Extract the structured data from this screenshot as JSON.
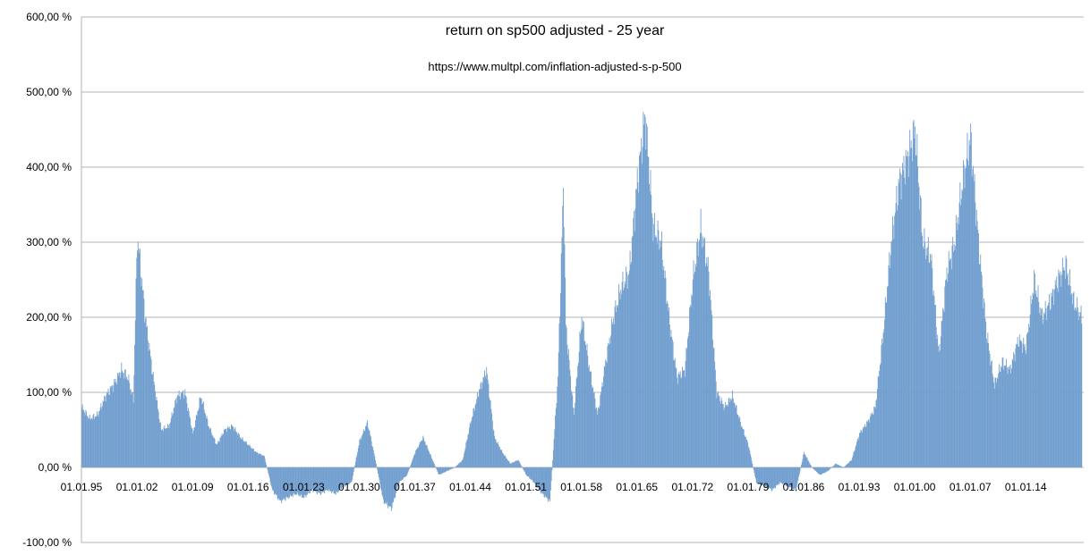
{
  "chart_data": {
    "type": "bar",
    "title": "return on sp500 adjusted - 25 year",
    "subtitle": "https://www.multpl.com/inflation-adjusted-s-p-500",
    "xlabel": "",
    "ylabel": "",
    "ylim": [
      -100,
      600
    ],
    "y_ticks": [
      {
        "value": 600,
        "label": "600,00 %"
      },
      {
        "value": 500,
        "label": "500,00 %"
      },
      {
        "value": 400,
        "label": "400,00 %"
      },
      {
        "value": 300,
        "label": "300,00 %"
      },
      {
        "value": 200,
        "label": "200,00 %"
      },
      {
        "value": 100,
        "label": "100,00 %"
      },
      {
        "value": 0,
        "label": "0,00 %"
      },
      {
        "value": -100,
        "label": "-100,00 %"
      }
    ],
    "x_range": [
      1895,
      2021.3
    ],
    "x_ticks": [
      {
        "value": 1895,
        "label": "01.01.95"
      },
      {
        "value": 1902,
        "label": "01.01.02"
      },
      {
        "value": 1909,
        "label": "01.01.09"
      },
      {
        "value": 1916,
        "label": "01.01.16"
      },
      {
        "value": 1923,
        "label": "01.01.23"
      },
      {
        "value": 1930,
        "label": "01.01.30"
      },
      {
        "value": 1937,
        "label": "01.01.37"
      },
      {
        "value": 1944,
        "label": "01.01.44"
      },
      {
        "value": 1951,
        "label": "01.01.51"
      },
      {
        "value": 1958,
        "label": "01.01.58"
      },
      {
        "value": 1965,
        "label": "01.01.65"
      },
      {
        "value": 1972,
        "label": "01.01.72"
      },
      {
        "value": 1979,
        "label": "01.01.79"
      },
      {
        "value": 1986,
        "label": "01.01.86"
      },
      {
        "value": 1993,
        "label": "01.01.93"
      },
      {
        "value": 2000,
        "label": "01.01.00"
      },
      {
        "value": 2007,
        "label": "01.01.07"
      },
      {
        "value": 2014,
        "label": "01.01.14"
      }
    ],
    "grid": true,
    "legend": "none",
    "bar_color": "#729fcf",
    "series": [
      {
        "x": [
          1895.0,
          1896.0,
          1897.0,
          1898.0,
          1899.0,
          1900.0,
          1900.8,
          1901.5,
          1902.0,
          1903.0,
          1904.0,
          1905.0,
          1906.0,
          1907.0,
          1908.0,
          1909.0,
          1910.0,
          1911.0,
          1912.0,
          1913.0,
          1914.0,
          1915.0,
          1916.0,
          1917.0,
          1918.0,
          1919.0,
          1920.0,
          1921.0,
          1922.0,
          1923.0,
          1924.0,
          1925.0,
          1926.0,
          1927.0,
          1928.0,
          1929.0,
          1930.0,
          1931.0,
          1932.0,
          1933.0,
          1934.0,
          1935.0,
          1936.0,
          1937.0,
          1938.0,
          1939.0,
          1940.0,
          1941.0,
          1942.0,
          1943.0,
          1944.0,
          1945.0,
          1946.0,
          1947.0,
          1948.0,
          1949.0,
          1950.0,
          1951.0,
          1952.0,
          1953.0,
          1954.0,
          1955.0,
          1955.7,
          1956.0,
          1957.0,
          1958.0,
          1959.0,
          1960.0,
          1961.0,
          1962.0,
          1963.0,
          1964.0,
          1965.0,
          1966.0,
          1967.0,
          1968.0,
          1969.0,
          1970.0,
          1971.0,
          1972.0,
          1973.0,
          1974.0,
          1975.0,
          1976.0,
          1977.0,
          1978.0,
          1979.0,
          1980.0,
          1981.0,
          1982.0,
          1983.0,
          1984.0,
          1985.0,
          1986.0,
          1987.0,
          1988.0,
          1989.0,
          1990.0,
          1991.0,
          1992.0,
          1993.0,
          1994.0,
          1995.0,
          1996.0,
          1997.0,
          1998.0,
          1999.0,
          2000.0,
          2001.0,
          2002.0,
          2003.0,
          2004.0,
          2005.0,
          2006.0,
          2007.0,
          2008.0,
          2009.0,
          2010.0,
          2011.0,
          2012.0,
          2013.0,
          2014.0,
          2015.0,
          2016.0,
          2017.0,
          2018.0,
          2019.0,
          2020.0,
          2021.0
        ],
        "values": [
          80,
          65,
          70,
          95,
          110,
          130,
          120,
          90,
          310,
          200,
          120,
          50,
          55,
          95,
          100,
          45,
          95,
          55,
          30,
          50,
          55,
          40,
          30,
          20,
          15,
          -30,
          -45,
          -40,
          -35,
          -40,
          -30,
          -35,
          -30,
          -35,
          -25,
          -20,
          35,
          60,
          10,
          -45,
          -55,
          -20,
          -10,
          20,
          40,
          15,
          -10,
          -5,
          0,
          10,
          60,
          100,
          130,
          40,
          20,
          5,
          10,
          -10,
          -20,
          -35,
          -45,
          120,
          380,
          190,
          70,
          200,
          130,
          70,
          140,
          200,
          240,
          260,
          380,
          470,
          320,
          300,
          200,
          120,
          130,
          250,
          320,
          260,
          100,
          80,
          95,
          60,
          30,
          -20,
          -25,
          -30,
          -20,
          -25,
          -30,
          20,
          0,
          -10,
          -5,
          5,
          0,
          10,
          45,
          60,
          80,
          180,
          300,
          380,
          410,
          450,
          300,
          280,
          150,
          260,
          300,
          380,
          440,
          300,
          180,
          110,
          140,
          130,
          170,
          160,
          250,
          200,
          220,
          250,
          270,
          220,
          200
        ]
      }
    ]
  }
}
